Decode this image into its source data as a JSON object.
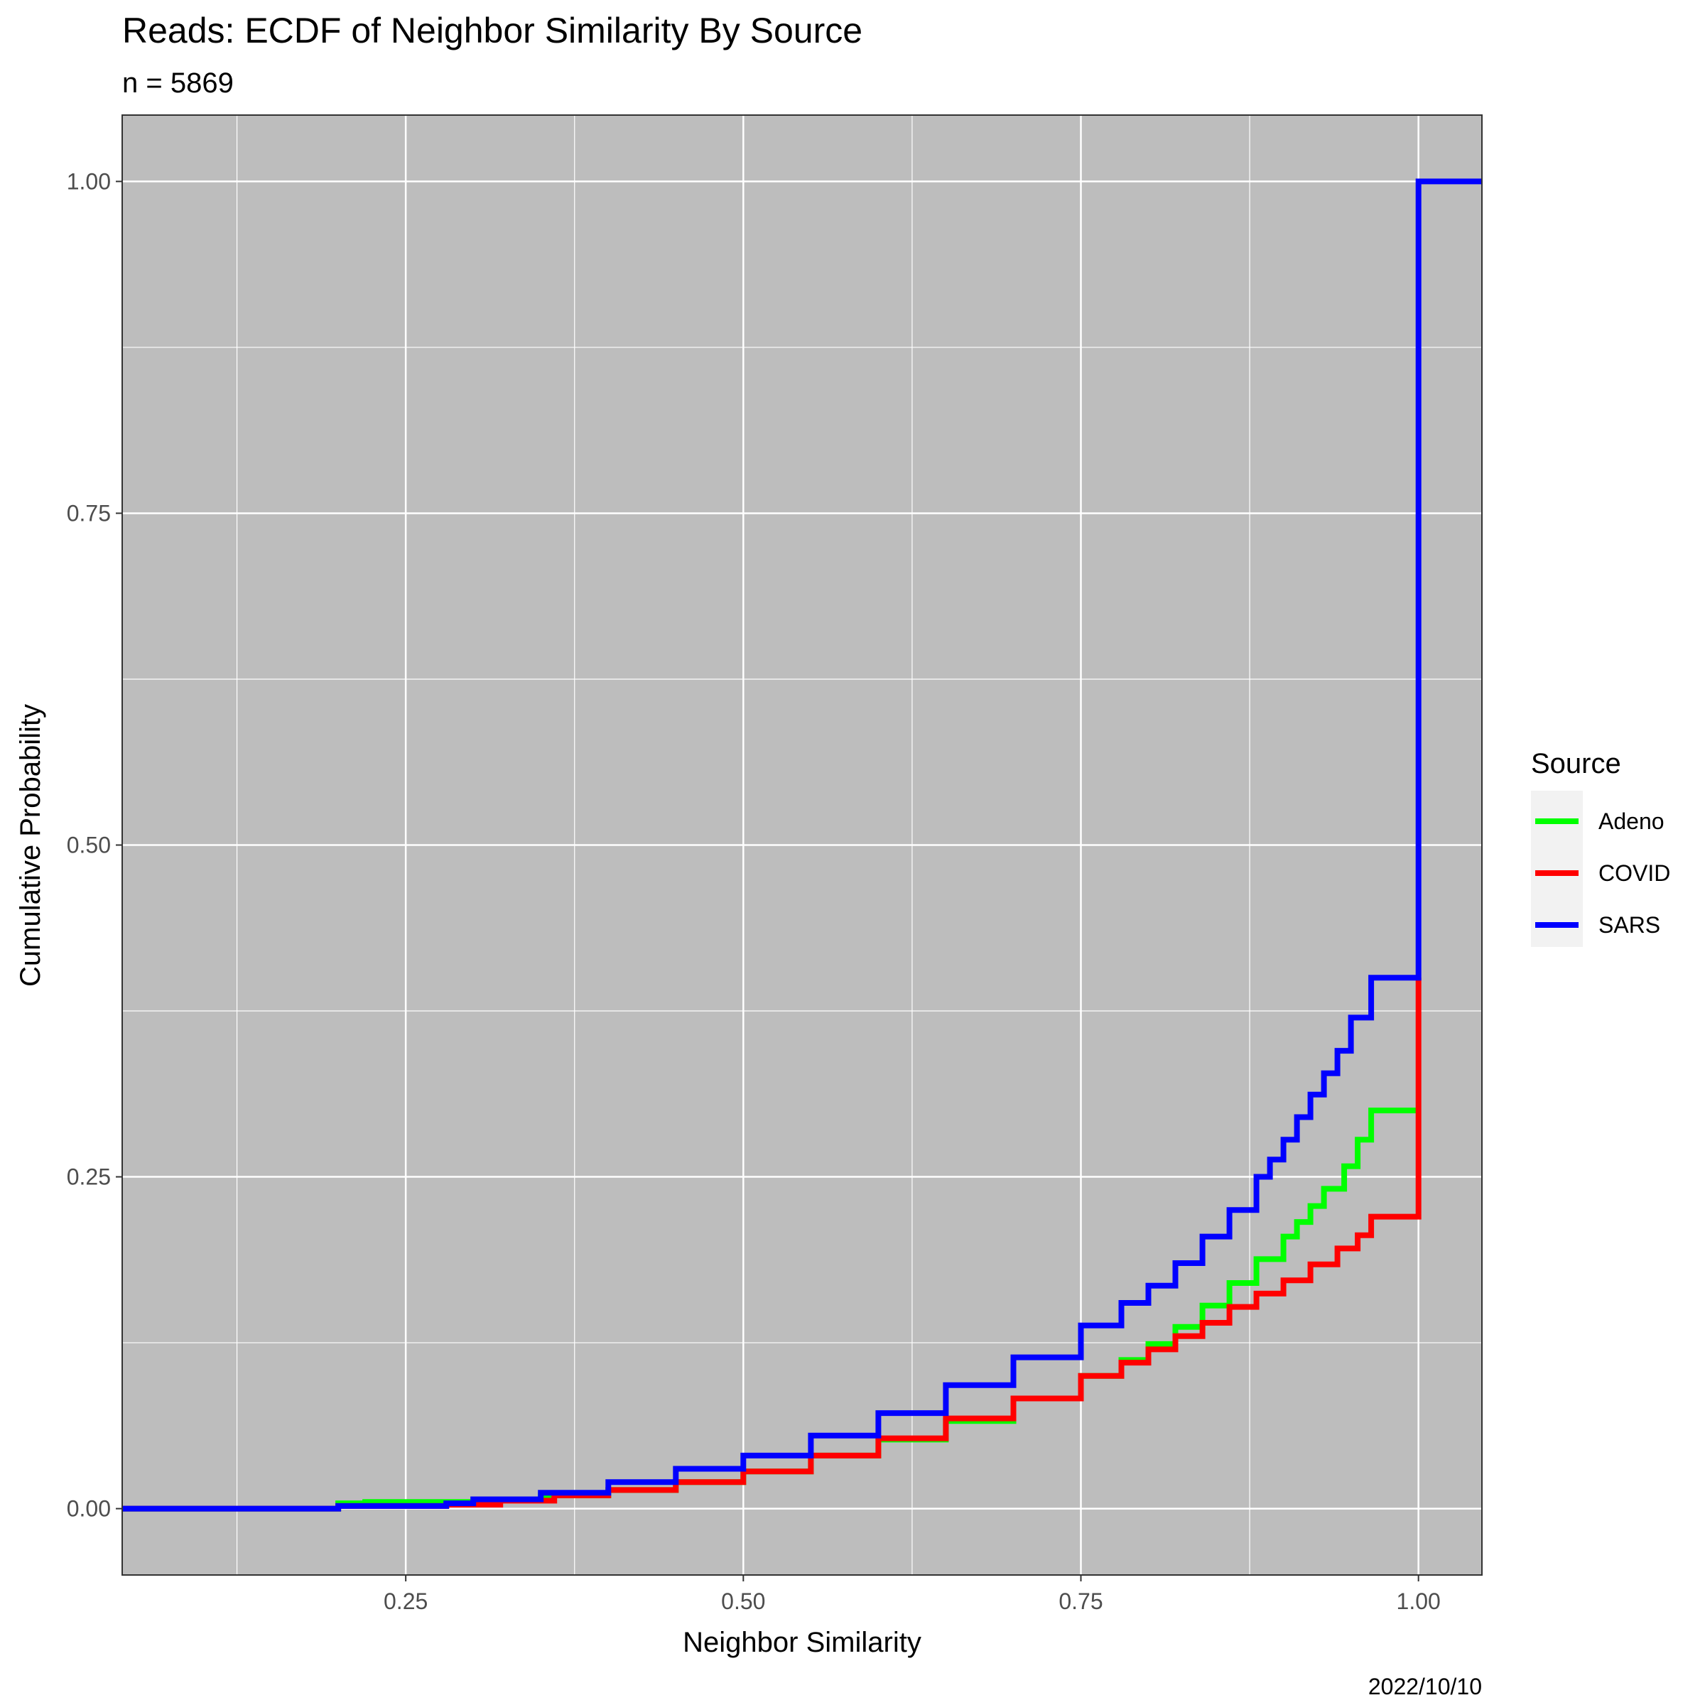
{
  "chart_data": {
    "type": "line",
    "step": true,
    "title": "Reads: ECDF of Neighbor Similarity By Source",
    "subtitle": "n = 5869",
    "xlabel": "Neighbor Similarity",
    "ylabel": "Cumulative Probability",
    "caption": "2022/10/10",
    "xlim": [
      0.04,
      1.047
    ],
    "ylim": [
      -0.05,
      1.05
    ],
    "x_ticks": [
      0.25,
      0.5,
      0.75,
      1.0
    ],
    "x_tick_labels": [
      "0.25",
      "0.50",
      "0.75",
      "1.00"
    ],
    "y_ticks": [
      0.0,
      0.25,
      0.5,
      0.75,
      1.0
    ],
    "y_tick_labels": [
      "0.00",
      "0.25",
      "0.50",
      "0.75",
      "1.00"
    ],
    "grid": true,
    "panel_background": "#bdbdbd",
    "legend": {
      "title": "Source",
      "position": "right"
    },
    "series": [
      {
        "name": "Adeno",
        "color": "#00ff00",
        "x": [
          0.04,
          0.18,
          0.2,
          0.22,
          0.3,
          0.35,
          0.4,
          0.45,
          0.5,
          0.55,
          0.6,
          0.65,
          0.7,
          0.75,
          0.78,
          0.8,
          0.82,
          0.84,
          0.86,
          0.88,
          0.9,
          0.91,
          0.92,
          0.93,
          0.945,
          0.955,
          0.965,
          1.0
        ],
        "y": [
          0.0,
          0.0,
          0.004,
          0.005,
          0.007,
          0.01,
          0.014,
          0.02,
          0.028,
          0.04,
          0.052,
          0.066,
          0.083,
          0.1,
          0.112,
          0.124,
          0.137,
          0.153,
          0.17,
          0.188,
          0.205,
          0.216,
          0.228,
          0.241,
          0.258,
          0.278,
          0.3,
          0.3
        ]
      },
      {
        "name": "COVID",
        "color": "#ff0000",
        "x": [
          0.04,
          0.18,
          0.2,
          0.28,
          0.32,
          0.36,
          0.4,
          0.45,
          0.5,
          0.55,
          0.6,
          0.65,
          0.7,
          0.75,
          0.78,
          0.8,
          0.82,
          0.84,
          0.86,
          0.88,
          0.9,
          0.92,
          0.94,
          0.955,
          0.965,
          1.0,
          1.0
        ],
        "y": [
          0.0,
          0.0,
          0.002,
          0.003,
          0.006,
          0.01,
          0.014,
          0.02,
          0.028,
          0.04,
          0.053,
          0.068,
          0.083,
          0.1,
          0.11,
          0.12,
          0.13,
          0.14,
          0.152,
          0.162,
          0.172,
          0.184,
          0.196,
          0.206,
          0.22,
          0.22,
          0.4
        ]
      },
      {
        "name": "SARS",
        "color": "#0000ff",
        "x": [
          0.04,
          0.18,
          0.2,
          0.28,
          0.3,
          0.35,
          0.4,
          0.45,
          0.5,
          0.55,
          0.6,
          0.65,
          0.7,
          0.75,
          0.78,
          0.8,
          0.82,
          0.84,
          0.86,
          0.88,
          0.89,
          0.9,
          0.91,
          0.92,
          0.93,
          0.94,
          0.95,
          0.965,
          1.0,
          1.0,
          1.047
        ],
        "y": [
          0.0,
          0.0,
          0.002,
          0.004,
          0.007,
          0.012,
          0.02,
          0.03,
          0.04,
          0.055,
          0.072,
          0.093,
          0.114,
          0.138,
          0.155,
          0.168,
          0.185,
          0.205,
          0.225,
          0.25,
          0.263,
          0.278,
          0.295,
          0.312,
          0.328,
          0.345,
          0.37,
          0.4,
          0.4,
          1.0,
          1.0
        ]
      }
    ]
  }
}
